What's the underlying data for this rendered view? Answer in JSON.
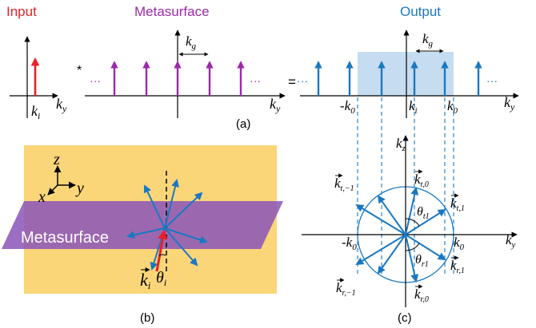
{
  "colors": {
    "input": "#e8202a",
    "metasurface": "#9a2aa8",
    "output": "#1a78c2",
    "band": "#c6dcf0",
    "slab": "#fbd678",
    "slab_edge": "#e8b64a",
    "plane": "#8a55b8",
    "axis": "#000000"
  },
  "titles": {
    "input": "Input",
    "metasurface": "Metasurface",
    "output": "Output"
  },
  "operators": {
    "convolve": "*",
    "equals": "="
  },
  "ellipsis": "···",
  "labels": {
    "ky": "k",
    "ky_sub": "y",
    "ki": "k",
    "ki_sub": "i",
    "kg": "k",
    "kg_sub": "g",
    "neg_k0": "-k",
    "k0": "k",
    "zero_sub": "0",
    "kz": "k",
    "kz_sub": "z",
    "z": "z",
    "y": "y",
    "x": "x",
    "theta": "θ",
    "theta_i_sub": "i",
    "theta_t1_sub": "t1",
    "theta_r1_sub": "r1",
    "k": "k",
    "t_m1_sub": "t,−1",
    "t_0_sub": "t,0",
    "t_1_sub": "t,1",
    "r_m1_sub": "r,−1",
    "r_0_sub": "r,0",
    "r_1_sub": "r,1",
    "metasurface_plane": "Metasurface"
  },
  "captions": {
    "a": "(a)",
    "b": "(b)",
    "c": "(c)"
  }
}
